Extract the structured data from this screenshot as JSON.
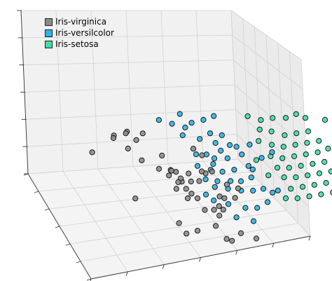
{
  "chart_data": {
    "type": "scatter",
    "dimensions": 3,
    "title": "",
    "xlabel": "",
    "ylabel": "",
    "zlabel": "",
    "grid": true,
    "tick_labels_visible": false,
    "legend_placement": "top-left",
    "series": [
      {
        "name": "Iris-virginica",
        "color": "#8c8c8c",
        "points": [
          [
            0.22,
            0.31,
            0.55
          ],
          [
            0.27,
            0.34,
            0.6
          ],
          [
            0.2,
            0.36,
            0.57
          ],
          [
            0.29,
            0.3,
            0.58
          ],
          [
            0.32,
            0.35,
            0.54
          ],
          [
            0.36,
            0.33,
            0.59
          ],
          [
            0.26,
            0.4,
            0.5
          ],
          [
            0.12,
            0.28,
            0.35
          ],
          [
            0.33,
            0.4,
            0.38
          ],
          [
            0.44,
            0.38,
            0.41
          ],
          [
            0.4,
            0.45,
            0.34
          ],
          [
            0.46,
            0.46,
            0.33
          ],
          [
            0.44,
            0.48,
            0.3
          ],
          [
            0.5,
            0.48,
            0.27
          ],
          [
            0.47,
            0.42,
            0.3
          ],
          [
            0.49,
            0.44,
            0.3
          ],
          [
            0.54,
            0.48,
            0.32
          ],
          [
            0.48,
            0.5,
            0.25
          ],
          [
            0.52,
            0.44,
            0.2
          ],
          [
            0.46,
            0.53,
            0.21
          ],
          [
            0.51,
            0.53,
            0.21
          ],
          [
            0.53,
            0.55,
            0.18
          ],
          [
            0.55,
            0.58,
            0.16
          ],
          [
            0.5,
            0.58,
            0.16
          ],
          [
            0.58,
            0.52,
            0.28
          ],
          [
            0.62,
            0.5,
            0.34
          ],
          [
            0.6,
            0.5,
            0.36
          ],
          [
            0.66,
            0.48,
            0.34
          ],
          [
            0.58,
            0.6,
            0.06
          ],
          [
            0.62,
            0.62,
            0.08
          ],
          [
            0.64,
            0.64,
            0.04
          ],
          [
            0.66,
            0.58,
            0.08
          ],
          [
            0.24,
            0.56,
            0.14
          ],
          [
            0.42,
            0.68,
            0.0
          ],
          [
            0.44,
            0.73,
            -0.06
          ],
          [
            0.5,
            0.72,
            -0.04
          ],
          [
            0.6,
            0.7,
            -0.01
          ],
          [
            0.62,
            0.8,
            -0.05
          ],
          [
            0.64,
            0.82,
            -0.05
          ],
          [
            0.7,
            0.78,
            -0.01
          ],
          [
            0.66,
            0.64,
            0.1
          ],
          [
            0.68,
            0.6,
            0.18
          ],
          [
            0.72,
            0.64,
            0.22
          ],
          [
            0.75,
            0.6,
            0.28
          ],
          [
            0.7,
            0.58,
            0.3
          ],
          [
            0.8,
            0.72,
            -0.12
          ],
          [
            0.63,
            0.42,
            0.45
          ],
          [
            0.6,
            0.38,
            0.48
          ],
          [
            0.67,
            0.56,
            0.16
          ],
          [
            0.56,
            0.46,
            0.22
          ]
        ]
      },
      {
        "name": "Iris-versilcolor",
        "color": "#29b6e8",
        "points": [
          [
            0.46,
            0.28,
            0.68
          ],
          [
            0.52,
            0.3,
            0.66
          ],
          [
            0.58,
            0.32,
            0.64
          ],
          [
            0.62,
            0.3,
            0.67
          ],
          [
            0.68,
            0.3,
            0.7
          ],
          [
            0.74,
            0.28,
            0.72
          ],
          [
            0.56,
            0.34,
            0.58
          ],
          [
            0.64,
            0.36,
            0.56
          ],
          [
            0.72,
            0.36,
            0.52
          ],
          [
            0.8,
            0.34,
            0.48
          ],
          [
            0.6,
            0.42,
            0.46
          ],
          [
            0.66,
            0.4,
            0.44
          ],
          [
            0.7,
            0.4,
            0.4
          ],
          [
            0.76,
            0.42,
            0.42
          ],
          [
            0.84,
            0.4,
            0.44
          ],
          [
            0.6,
            0.44,
            0.36
          ],
          [
            0.66,
            0.46,
            0.34
          ],
          [
            0.72,
            0.46,
            0.32
          ],
          [
            0.78,
            0.46,
            0.34
          ],
          [
            0.86,
            0.44,
            0.36
          ],
          [
            0.62,
            0.5,
            0.28
          ],
          [
            0.68,
            0.5,
            0.26
          ],
          [
            0.74,
            0.52,
            0.28
          ],
          [
            0.8,
            0.5,
            0.26
          ],
          [
            0.86,
            0.48,
            0.28
          ],
          [
            0.66,
            0.52,
            0.22
          ],
          [
            0.72,
            0.54,
            0.22
          ],
          [
            0.78,
            0.56,
            0.22
          ],
          [
            0.84,
            0.56,
            0.22
          ],
          [
            0.9,
            0.54,
            0.22
          ],
          [
            0.7,
            0.6,
            0.12
          ],
          [
            0.78,
            0.62,
            0.1
          ],
          [
            0.84,
            0.62,
            0.1
          ],
          [
            0.72,
            0.66,
            0.04
          ],
          [
            0.8,
            0.68,
            0.02
          ],
          [
            0.9,
            0.6,
            0.14
          ],
          [
            0.94,
            0.56,
            0.2
          ],
          [
            0.6,
            0.56,
            0.18
          ],
          [
            0.68,
            0.44,
            0.38
          ],
          [
            0.74,
            0.38,
            0.46
          ],
          [
            0.82,
            0.38,
            0.5
          ],
          [
            0.88,
            0.4,
            0.54
          ],
          [
            0.92,
            0.46,
            0.46
          ],
          [
            0.98,
            0.44,
            0.5
          ],
          [
            0.7,
            0.34,
            0.6
          ],
          [
            0.76,
            0.34,
            0.58
          ],
          [
            0.56,
            0.3,
            0.76
          ],
          [
            0.86,
            0.5,
            0.38
          ],
          [
            0.64,
            0.56,
            0.12
          ],
          [
            0.96,
            0.58,
            0.24
          ]
        ]
      },
      {
        "name": "Iris-setosa",
        "color": "#3ee0a8",
        "points": [
          [
            0.92,
            0.26,
            0.7
          ],
          [
            0.98,
            0.28,
            0.68
          ],
          [
            1.04,
            0.28,
            0.7
          ],
          [
            1.1,
            0.3,
            0.72
          ],
          [
            1.16,
            0.28,
            0.74
          ],
          [
            0.96,
            0.32,
            0.62
          ],
          [
            1.02,
            0.32,
            0.6
          ],
          [
            1.08,
            0.34,
            0.58
          ],
          [
            1.14,
            0.34,
            0.6
          ],
          [
            1.2,
            0.34,
            0.62
          ],
          [
            0.94,
            0.36,
            0.54
          ],
          [
            1.0,
            0.38,
            0.52
          ],
          [
            1.06,
            0.38,
            0.5
          ],
          [
            1.12,
            0.38,
            0.52
          ],
          [
            1.18,
            0.38,
            0.54
          ],
          [
            1.24,
            0.38,
            0.56
          ],
          [
            0.98,
            0.42,
            0.44
          ],
          [
            1.04,
            0.42,
            0.42
          ],
          [
            1.1,
            0.42,
            0.44
          ],
          [
            1.16,
            0.42,
            0.46
          ],
          [
            1.22,
            0.42,
            0.48
          ],
          [
            1.28,
            0.4,
            0.5
          ],
          [
            1.0,
            0.46,
            0.36
          ],
          [
            1.06,
            0.46,
            0.36
          ],
          [
            1.12,
            0.46,
            0.38
          ],
          [
            1.18,
            0.46,
            0.4
          ],
          [
            1.24,
            0.46,
            0.42
          ],
          [
            1.3,
            0.44,
            0.44
          ],
          [
            1.02,
            0.5,
            0.3
          ],
          [
            1.08,
            0.5,
            0.3
          ],
          [
            1.14,
            0.5,
            0.32
          ],
          [
            1.2,
            0.5,
            0.34
          ],
          [
            1.26,
            0.5,
            0.36
          ],
          [
            1.32,
            0.48,
            0.38
          ],
          [
            1.04,
            0.54,
            0.22
          ],
          [
            1.1,
            0.54,
            0.24
          ],
          [
            1.16,
            0.54,
            0.26
          ],
          [
            1.22,
            0.54,
            0.28
          ],
          [
            1.28,
            0.54,
            0.3
          ],
          [
            1.34,
            0.52,
            0.3
          ],
          [
            1.0,
            0.58,
            0.16
          ],
          [
            1.06,
            0.58,
            0.16
          ],
          [
            1.12,
            0.58,
            0.18
          ],
          [
            1.18,
            0.58,
            0.2
          ],
          [
            1.24,
            0.58,
            0.22
          ],
          [
            1.36,
            0.36,
            0.64
          ],
          [
            1.3,
            0.3,
            0.7
          ],
          [
            0.9,
            0.44,
            0.42
          ],
          [
            0.94,
            0.5,
            0.32
          ],
          [
            1.2,
            0.3,
            0.72
          ]
        ]
      }
    ]
  }
}
